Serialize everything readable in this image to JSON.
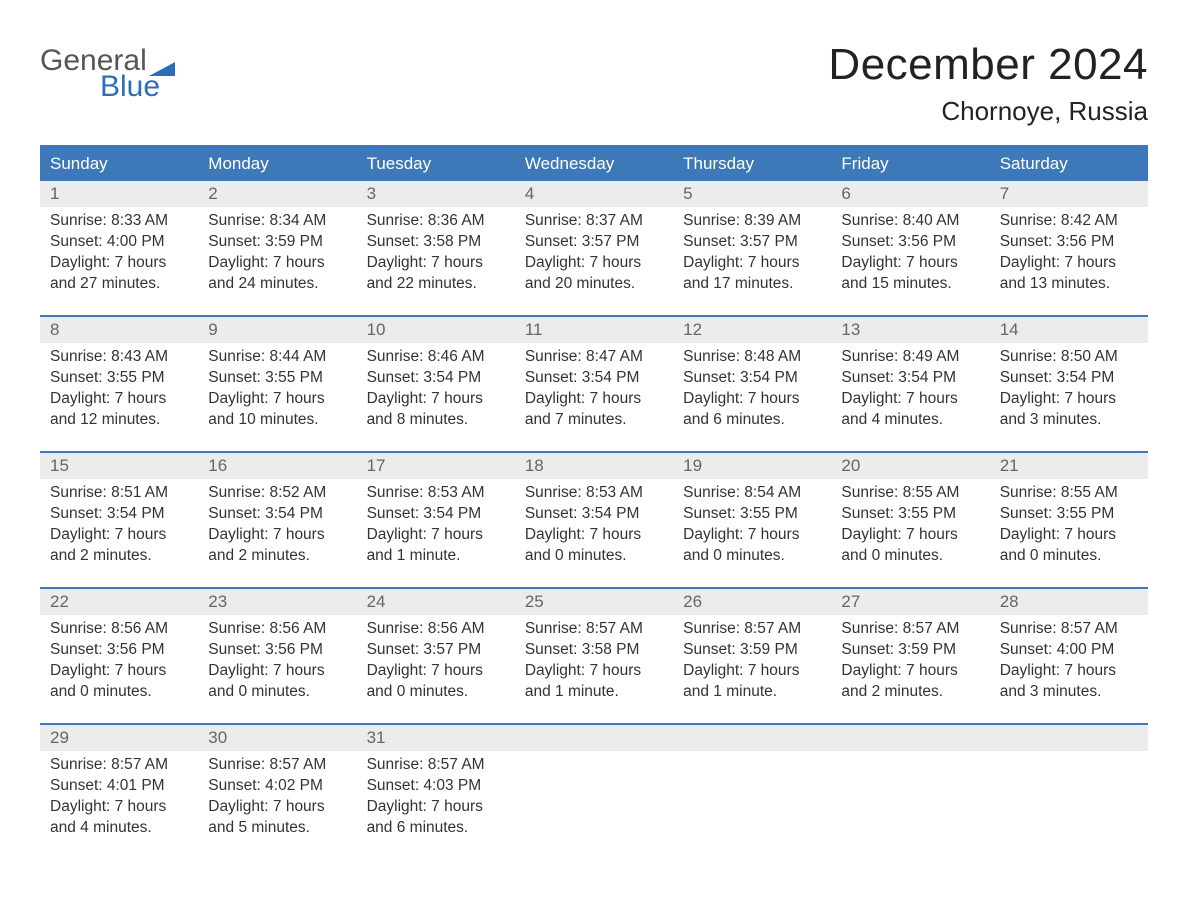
{
  "brand": {
    "general": "General",
    "blue": "Blue",
    "flag_color": "#2d6fb5"
  },
  "title": "December 2024",
  "location": "Chornoye, Russia",
  "colors": {
    "header_bg": "#3d78b8",
    "header_text": "#ffffff",
    "daynum_bg": "#ececec",
    "daynum_text": "#666666",
    "body_text": "#333333",
    "rule": "#3d78b8",
    "page_bg": "#ffffff"
  },
  "day_names": [
    "Sunday",
    "Monday",
    "Tuesday",
    "Wednesday",
    "Thursday",
    "Friday",
    "Saturday"
  ],
  "weeks": [
    [
      {
        "n": "1",
        "sr": "8:33 AM",
        "ss": "4:00 PM",
        "dl": "7 hours and 27 minutes."
      },
      {
        "n": "2",
        "sr": "8:34 AM",
        "ss": "3:59 PM",
        "dl": "7 hours and 24 minutes."
      },
      {
        "n": "3",
        "sr": "8:36 AM",
        "ss": "3:58 PM",
        "dl": "7 hours and 22 minutes."
      },
      {
        "n": "4",
        "sr": "8:37 AM",
        "ss": "3:57 PM",
        "dl": "7 hours and 20 minutes."
      },
      {
        "n": "5",
        "sr": "8:39 AM",
        "ss": "3:57 PM",
        "dl": "7 hours and 17 minutes."
      },
      {
        "n": "6",
        "sr": "8:40 AM",
        "ss": "3:56 PM",
        "dl": "7 hours and 15 minutes."
      },
      {
        "n": "7",
        "sr": "8:42 AM",
        "ss": "3:56 PM",
        "dl": "7 hours and 13 minutes."
      }
    ],
    [
      {
        "n": "8",
        "sr": "8:43 AM",
        "ss": "3:55 PM",
        "dl": "7 hours and 12 minutes."
      },
      {
        "n": "9",
        "sr": "8:44 AM",
        "ss": "3:55 PM",
        "dl": "7 hours and 10 minutes."
      },
      {
        "n": "10",
        "sr": "8:46 AM",
        "ss": "3:54 PM",
        "dl": "7 hours and 8 minutes."
      },
      {
        "n": "11",
        "sr": "8:47 AM",
        "ss": "3:54 PM",
        "dl": "7 hours and 7 minutes."
      },
      {
        "n": "12",
        "sr": "8:48 AM",
        "ss": "3:54 PM",
        "dl": "7 hours and 6 minutes."
      },
      {
        "n": "13",
        "sr": "8:49 AM",
        "ss": "3:54 PM",
        "dl": "7 hours and 4 minutes."
      },
      {
        "n": "14",
        "sr": "8:50 AM",
        "ss": "3:54 PM",
        "dl": "7 hours and 3 minutes."
      }
    ],
    [
      {
        "n": "15",
        "sr": "8:51 AM",
        "ss": "3:54 PM",
        "dl": "7 hours and 2 minutes."
      },
      {
        "n": "16",
        "sr": "8:52 AM",
        "ss": "3:54 PM",
        "dl": "7 hours and 2 minutes."
      },
      {
        "n": "17",
        "sr": "8:53 AM",
        "ss": "3:54 PM",
        "dl": "7 hours and 1 minute."
      },
      {
        "n": "18",
        "sr": "8:53 AM",
        "ss": "3:54 PM",
        "dl": "7 hours and 0 minutes."
      },
      {
        "n": "19",
        "sr": "8:54 AM",
        "ss": "3:55 PM",
        "dl": "7 hours and 0 minutes."
      },
      {
        "n": "20",
        "sr": "8:55 AM",
        "ss": "3:55 PM",
        "dl": "7 hours and 0 minutes."
      },
      {
        "n": "21",
        "sr": "8:55 AM",
        "ss": "3:55 PM",
        "dl": "7 hours and 0 minutes."
      }
    ],
    [
      {
        "n": "22",
        "sr": "8:56 AM",
        "ss": "3:56 PM",
        "dl": "7 hours and 0 minutes."
      },
      {
        "n": "23",
        "sr": "8:56 AM",
        "ss": "3:56 PM",
        "dl": "7 hours and 0 minutes."
      },
      {
        "n": "24",
        "sr": "8:56 AM",
        "ss": "3:57 PM",
        "dl": "7 hours and 0 minutes."
      },
      {
        "n": "25",
        "sr": "8:57 AM",
        "ss": "3:58 PM",
        "dl": "7 hours and 1 minute."
      },
      {
        "n": "26",
        "sr": "8:57 AM",
        "ss": "3:59 PM",
        "dl": "7 hours and 1 minute."
      },
      {
        "n": "27",
        "sr": "8:57 AM",
        "ss": "3:59 PM",
        "dl": "7 hours and 2 minutes."
      },
      {
        "n": "28",
        "sr": "8:57 AM",
        "ss": "4:00 PM",
        "dl": "7 hours and 3 minutes."
      }
    ],
    [
      {
        "n": "29",
        "sr": "8:57 AM",
        "ss": "4:01 PM",
        "dl": "7 hours and 4 minutes."
      },
      {
        "n": "30",
        "sr": "8:57 AM",
        "ss": "4:02 PM",
        "dl": "7 hours and 5 minutes."
      },
      {
        "n": "31",
        "sr": "8:57 AM",
        "ss": "4:03 PM",
        "dl": "7 hours and 6 minutes."
      },
      null,
      null,
      null,
      null
    ]
  ],
  "labels": {
    "sunrise": "Sunrise: ",
    "sunset": "Sunset: ",
    "daylight": "Daylight: "
  }
}
